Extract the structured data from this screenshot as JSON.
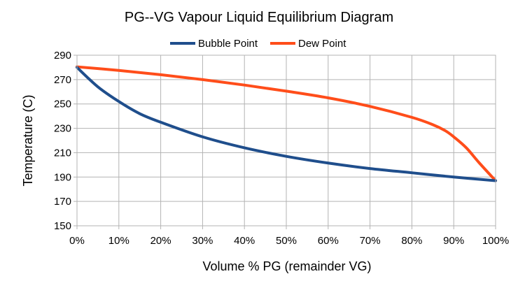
{
  "chart_data": {
    "type": "line",
    "title": "PG--VG Vapour Liquid Equilibrium Diagram",
    "xlabel": "Volume % PG (remainder VG)",
    "ylabel": "Temperature (C)",
    "xlim": [
      0,
      100
    ],
    "ylim": [
      150,
      290
    ],
    "x_ticks": [
      "0%",
      "10%",
      "20%",
      "30%",
      "40%",
      "50%",
      "60%",
      "70%",
      "80%",
      "90%",
      "100%"
    ],
    "y_ticks": [
      "150",
      "170",
      "190",
      "210",
      "230",
      "250",
      "270",
      "290"
    ],
    "grid": true,
    "legend": "top",
    "series": [
      {
        "name": "Bubble Point",
        "color": "#1f4e8c",
        "x": [
          0,
          5,
          10,
          15,
          20,
          30,
          40,
          50,
          60,
          70,
          80,
          90,
          100
        ],
        "y": [
          280,
          264,
          252,
          242,
          235,
          223,
          214,
          207,
          201.5,
          197,
          193.5,
          190,
          187
        ]
      },
      {
        "name": "Dew Point",
        "color": "#ff4d1a",
        "x": [
          0,
          10,
          20,
          30,
          40,
          50,
          60,
          70,
          80,
          85,
          88,
          90,
          93,
          96,
          100
        ],
        "y": [
          280.5,
          277.5,
          274,
          270,
          265.5,
          260.5,
          255,
          248,
          239,
          233,
          228,
          223,
          214,
          202,
          187
        ]
      }
    ]
  }
}
